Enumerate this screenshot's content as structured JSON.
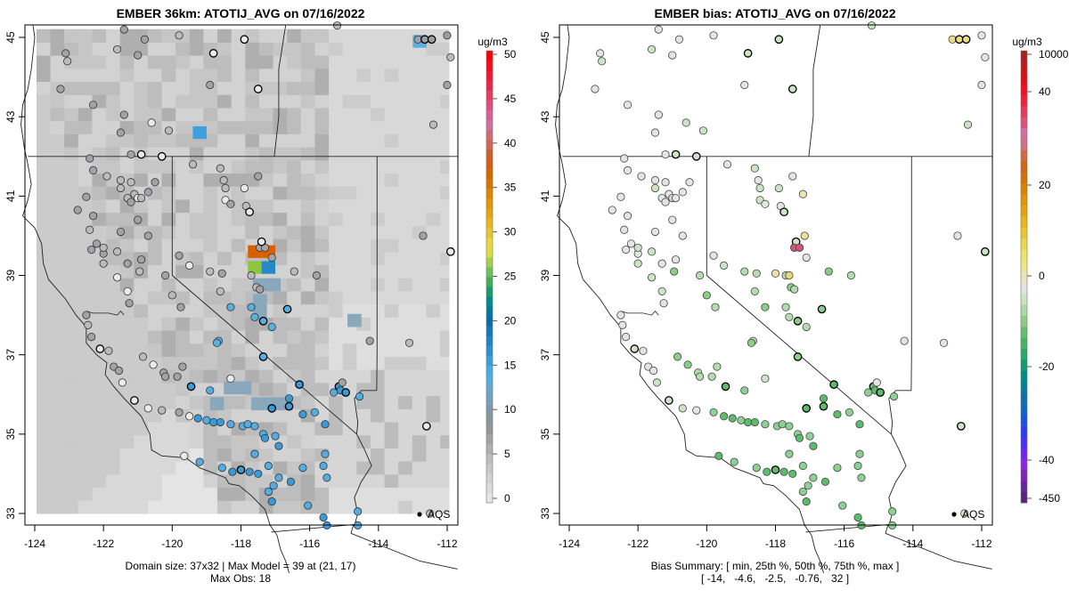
{
  "chart_data": [
    {
      "type": "heatmap",
      "title": "EMBER 36km: ATOTIJ_AVG on 07/16/2022",
      "xlabel": "",
      "ylabel": "",
      "xlim": [
        -124.3,
        -111.7
      ],
      "ylim": [
        32.7,
        45.3
      ],
      "x_ticks": [
        "-124",
        "-122",
        "-120",
        "-118",
        "-116",
        "-114",
        "-112"
      ],
      "y_ticks": [
        "33",
        "35",
        "37",
        "39",
        "41",
        "43",
        "45"
      ],
      "colorbar": {
        "unit": "ug/m3",
        "ticks": [
          "0",
          "5",
          "10",
          "15",
          "20",
          "25",
          "30",
          "35",
          "40",
          "45",
          "50"
        ],
        "range": [
          0,
          50
        ],
        "colors": [
          "#e6e6e6",
          "#dcdcdc",
          "#d2d2d2",
          "#c8c8c8",
          "#bdbdbd",
          "#b0b0b0",
          "#a3a3a3",
          "#969696",
          "#8a9499",
          "#7f99a8",
          "#77a0ba",
          "#6aa6cb",
          "#58addc",
          "#4aa9e0",
          "#3b9ed9",
          "#2e90cf",
          "#2383c3",
          "#1877b5",
          "#0a6ca8",
          "#007a99",
          "#008a8a",
          "#1a9a6f",
          "#3fad5c",
          "#6ac05a",
          "#a6cf4f",
          "#dbdc47",
          "#ecd63d",
          "#eac52d",
          "#e8b41f",
          "#e6a310",
          "#e59405",
          "#e08500",
          "#d97400",
          "#d46700",
          "#d15c12",
          "#cf5e2e",
          "#cf6850",
          "#d06c7a",
          "#cf72a0",
          "#d6609a",
          "#df4e80",
          "#e63a60",
          "#ec2648",
          "#f2182e",
          "#f50d1c",
          "#f70008"
        ]
      },
      "grid_cells": [
        {
          "lon": -117.6,
          "lat": 39.6,
          "value": 39,
          "color": "#d95f00"
        },
        {
          "lon": -117.2,
          "lat": 39.6,
          "value": 38,
          "color": "#d95f00"
        },
        {
          "lon": -117.6,
          "lat": 39.2,
          "value": 25,
          "color": "#8cc63f"
        },
        {
          "lon": -117.2,
          "lat": 39.2,
          "value": 13,
          "color": "#2589c8"
        },
        {
          "lon": -119.2,
          "lat": 42.6,
          "value": 11,
          "color": "#3ea0dc"
        },
        {
          "lon": -112.8,
          "lat": 44.9,
          "value": 10,
          "color": "#5aaddc"
        }
      ],
      "station_marker_label": "AQS",
      "footer": [
        "Domain size: 37x32 | Max Model = 39 at (21, 17)",
        "Max Obs: 18"
      ]
    },
    {
      "type": "scatter",
      "title": "EMBER bias: ATOTIJ_AVG on 07/16/2022",
      "xlabel": "",
      "ylabel": "",
      "xlim": [
        -124.3,
        -111.7
      ],
      "ylim": [
        32.7,
        45.3
      ],
      "x_ticks": [
        "-124",
        "-122",
        "-120",
        "-118",
        "-116",
        "-114",
        "-112"
      ],
      "y_ticks": [
        "33",
        "35",
        "37",
        "39",
        "41",
        "43",
        "45"
      ],
      "colorbar": {
        "unit": "ug/m3",
        "ticks": [
          "-450",
          "-40",
          "-20",
          "0",
          "20",
          "40",
          "10000"
        ],
        "colors": [
          "#5a2080",
          "#6a22a0",
          "#7d24c0",
          "#8e26e0",
          "#6a28f0",
          "#4830f5",
          "#2a40f0",
          "#1a55e0",
          "#1066c0",
          "#0a72a8",
          "#057f98",
          "#008a85",
          "#109a75",
          "#2aa869",
          "#45b463",
          "#66c06b",
          "#8ccd85",
          "#aed8a4",
          "#cde3c6",
          "#e4e4e4",
          "#ece6b6",
          "#ede48c",
          "#eee36a",
          "#ecd64f",
          "#ebc72f",
          "#e9b617",
          "#e6a40a",
          "#e49304",
          "#df8200",
          "#d87100",
          "#d46518",
          "#d26b45",
          "#d07282",
          "#d56f9e",
          "#df5077",
          "#e93858",
          "#f12038",
          "#f4101e",
          "#dc1016",
          "#c41814",
          "#a52222"
        ],
        "zero_color": "#e4e4e4"
      },
      "station_marker_label": "AQS",
      "footer": [
        "Bias Summary: [ min, 25th %, 50th %, 75th %, max ]",
        "[ -14,   -4.6,   -2.5,   -0.76,   32 ]"
      ]
    }
  ]
}
